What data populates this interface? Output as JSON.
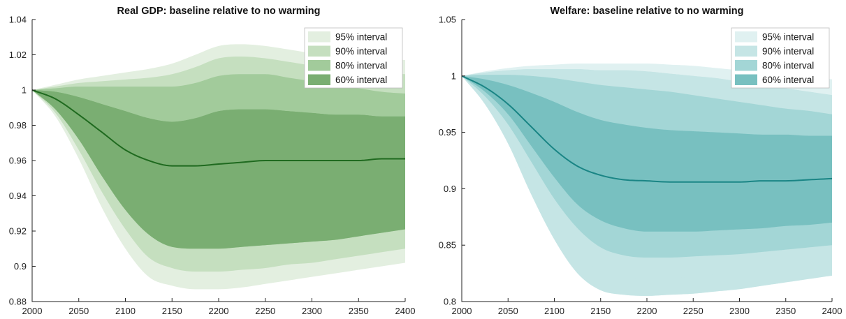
{
  "chart_data": [
    {
      "type": "area",
      "title": "Real GDP: baseline relative to no warming",
      "xlabel": "",
      "ylabel": "",
      "xlim": [
        2000,
        2400
      ],
      "ylim": [
        0.88,
        1.04
      ],
      "x_ticks": [
        "2000",
        "2050",
        "2100",
        "2150",
        "2200",
        "2250",
        "2300",
        "2350",
        "2400"
      ],
      "y_ticks": [
        "0.88",
        "0.9",
        "0.92",
        "0.94",
        "0.96",
        "0.98",
        "1",
        "1.02",
        "1.04"
      ],
      "legend_position": "top-right",
      "x": [
        2000,
        2025,
        2050,
        2075,
        2100,
        2125,
        2150,
        2175,
        2200,
        2225,
        2250,
        2275,
        2300,
        2325,
        2350,
        2375,
        2400
      ],
      "median": [
        1.0,
        0.995,
        0.986,
        0.976,
        0.966,
        0.96,
        0.957,
        0.957,
        0.958,
        0.959,
        0.96,
        0.96,
        0.96,
        0.96,
        0.96,
        0.961,
        0.961
      ],
      "bands": [
        {
          "name": "95% interval",
          "color": "#e3efe0",
          "upper": [
            1.0,
            1.003,
            1.006,
            1.008,
            1.01,
            1.012,
            1.015,
            1.02,
            1.025,
            1.026,
            1.025,
            1.023,
            1.021,
            1.02,
            1.019,
            1.018,
            1.017
          ],
          "lower": [
            1.0,
            0.985,
            0.961,
            0.933,
            0.91,
            0.894,
            0.889,
            0.887,
            0.887,
            0.888,
            0.89,
            0.892,
            0.894,
            0.896,
            0.898,
            0.9,
            0.902
          ]
        },
        {
          "name": "90% interval",
          "color": "#c5dfbf",
          "upper": [
            1.0,
            1.002,
            1.004,
            1.005,
            1.006,
            1.007,
            1.009,
            1.013,
            1.018,
            1.019,
            1.018,
            1.016,
            1.014,
            1.013,
            1.011,
            1.01,
            1.009
          ],
          "lower": [
            1.0,
            0.987,
            0.966,
            0.942,
            0.921,
            0.905,
            0.899,
            0.897,
            0.897,
            0.898,
            0.899,
            0.901,
            0.902,
            0.904,
            0.906,
            0.908,
            0.91
          ]
        },
        {
          "name": "80% interval",
          "color": "#a2cb9b",
          "upper": [
            1.0,
            1.001,
            1.002,
            1.002,
            1.002,
            1.002,
            1.002,
            1.004,
            1.008,
            1.009,
            1.009,
            1.007,
            1.005,
            1.003,
            1.001,
            0.999,
            0.998
          ],
          "lower": [
            1.0,
            0.989,
            0.972,
            0.951,
            0.932,
            0.918,
            0.911,
            0.91,
            0.91,
            0.911,
            0.912,
            0.913,
            0.914,
            0.915,
            0.917,
            0.919,
            0.921
          ]
        },
        {
          "name": "60% interval",
          "color": "#7aae72",
          "upper": [
            1.0,
            0.999,
            0.996,
            0.992,
            0.988,
            0.984,
            0.982,
            0.984,
            0.988,
            0.989,
            0.989,
            0.988,
            0.987,
            0.986,
            0.986,
            0.985,
            0.985
          ]
        },
        {
          "name": "",
          "color": "#7aae72",
          "upper": [
            1.0,
            0.999,
            0.996,
            0.992,
            0.988,
            0.984,
            0.982,
            0.984,
            0.988,
            0.989,
            0.989,
            0.988,
            0.987,
            0.986,
            0.986,
            0.985,
            0.985
          ],
          "lower": [
            1.0,
            0.992,
            0.977,
            0.958,
            0.942,
            0.931,
            0.926,
            0.925,
            0.925,
            0.926,
            0.927,
            0.928,
            0.929,
            0.93,
            0.931,
            0.933,
            0.934
          ]
        }
      ],
      "line_color": "#1f6a1f"
    },
    {
      "type": "area",
      "title": "Welfare: baseline relative to no warming",
      "xlabel": "",
      "ylabel": "",
      "xlim": [
        2000,
        2400
      ],
      "ylim": [
        0.8,
        1.05
      ],
      "x_ticks": [
        "2000",
        "2050",
        "2100",
        "2150",
        "2200",
        "2250",
        "2300",
        "2350",
        "2400"
      ],
      "y_ticks": [
        "0.8",
        "0.85",
        "0.9",
        "0.95",
        "1",
        "1.05"
      ],
      "legend_position": "top-right",
      "x": [
        2000,
        2025,
        2050,
        2075,
        2100,
        2125,
        2150,
        2175,
        2200,
        2225,
        2250,
        2275,
        2300,
        2325,
        2350,
        2375,
        2400
      ],
      "median": [
        1.0,
        0.99,
        0.975,
        0.955,
        0.935,
        0.92,
        0.912,
        0.908,
        0.907,
        0.906,
        0.906,
        0.906,
        0.906,
        0.907,
        0.907,
        0.908,
        0.909
      ],
      "bands": [
        {
          "name": "95% interval",
          "color": "#e0f1f1",
          "upper": [
            1.0,
            1.004,
            1.007,
            1.009,
            1.01,
            1.011,
            1.011,
            1.011,
            1.011,
            1.01,
            1.009,
            1.007,
            1.005,
            1.003,
            1.001,
            0.999,
            0.997
          ],
          "lower": [
            1.0,
            0.975,
            0.94,
            0.895,
            0.855,
            0.825,
            0.81,
            0.806,
            0.805,
            0.806,
            0.807,
            0.809,
            0.811,
            0.814,
            0.817,
            0.82,
            0.823
          ]
        },
        {
          "name": "90% interval",
          "color": "#c5e5e5",
          "upper": [
            1.0,
            1.003,
            1.005,
            1.006,
            1.006,
            1.006,
            1.005,
            1.005,
            1.004,
            1.002,
            1.0,
            0.998,
            0.995,
            0.992,
            0.989,
            0.986,
            0.983
          ]
        },
        {
          "name": "",
          "color": "#c5e5e5",
          "upper": [
            1.0,
            1.003,
            1.005,
            1.006,
            1.006,
            1.006,
            1.005,
            1.005,
            1.004,
            1.002,
            1.0,
            0.998,
            0.995,
            0.992,
            0.989,
            0.986,
            0.983
          ],
          "lower": [
            1.0,
            0.979,
            0.949,
            0.91,
            0.872,
            0.843,
            0.827,
            0.822,
            0.82,
            0.821,
            0.822,
            0.824,
            0.826,
            0.828,
            0.831,
            0.833,
            0.836
          ]
        },
        {
          "name": "80% interval",
          "color": "#a3d6d6",
          "upper": [
            1.0,
            1.001,
            1.001,
            1.0,
            0.998,
            0.995,
            0.992,
            0.99,
            0.988,
            0.986,
            0.983,
            0.98,
            0.977,
            0.974,
            0.971,
            0.969,
            0.966
          ],
          "lower": [
            1.0,
            0.982,
            0.957,
            0.924,
            0.891,
            0.865,
            0.848,
            0.841,
            0.839,
            0.839,
            0.84,
            0.841,
            0.842,
            0.844,
            0.846,
            0.848,
            0.85
          ]
        },
        {
          "name": "60% interval",
          "color": "#78c0c0",
          "upper": [
            1.0,
            0.997,
            0.992,
            0.985,
            0.977,
            0.968,
            0.961,
            0.957,
            0.954,
            0.952,
            0.951,
            0.95,
            0.949,
            0.948,
            0.948,
            0.947,
            0.947
          ],
          "lower": [
            1.0,
            0.986,
            0.966,
            0.938,
            0.91,
            0.886,
            0.872,
            0.865,
            0.862,
            0.862,
            0.862,
            0.863,
            0.864,
            0.865,
            0.867,
            0.868,
            0.87
          ]
        }
      ],
      "line_color": "#1a8585"
    }
  ]
}
